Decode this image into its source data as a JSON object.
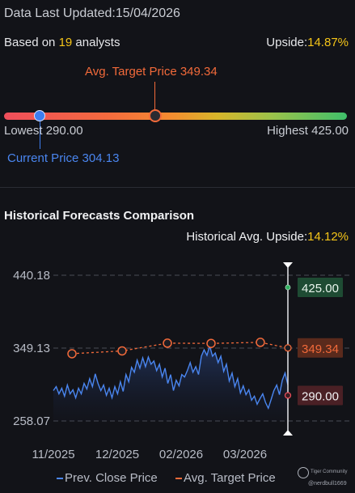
{
  "header": {
    "updated_label": "Data Last Updated:",
    "updated_date": "15/04/2026",
    "analysts_prefix": "Based on ",
    "analysts_count": "19",
    "analysts_suffix": " analysts",
    "upside_label": "Upside:",
    "upside_value": "14.87%"
  },
  "range": {
    "avg_target_label": "Avg. Target Price 349.34",
    "lowest_label": "Lowest 290.00",
    "highest_label": "Highest 425.00",
    "current_label": "Current Price 304.13",
    "low": 290.0,
    "high": 425.0,
    "current": 304.13,
    "avg_target": 349.34,
    "colors": {
      "current": "#3d7ef0",
      "avg": "#f26a3a"
    }
  },
  "history": {
    "title": "Historical Forecasts Comparison",
    "upside_label": "Historical Avg. Upside:",
    "upside_value": "14.12%",
    "legend_prev": "Prev. Close Price",
    "legend_avg": "Avg. Target Price"
  },
  "chart_data": {
    "type": "line",
    "title": "Historical Forecasts Comparison",
    "y_ticks": [
      "440.18",
      "349.13",
      "258.07"
    ],
    "ylim": [
      258.07,
      440.18
    ],
    "x_ticks": [
      "11/2025",
      "12/2025",
      "02/2026",
      "03/2026"
    ],
    "series": [
      {
        "name": "Prev. Close Price",
        "color": "#4a86f0",
        "values": [
          296,
          301,
          292,
          299,
          289,
          303,
          292,
          297,
          287,
          299,
          292,
          305,
          298,
          311,
          301,
          317,
          305,
          296,
          303,
          290,
          299,
          287,
          301,
          292,
          307,
          295,
          316,
          307,
          325,
          319,
          334,
          324,
          337,
          326,
          338,
          329,
          333,
          321,
          329,
          313,
          324,
          305,
          316,
          296,
          309,
          302,
          316,
          313,
          321,
          331,
          319,
          326,
          316,
          339,
          347,
          340,
          352,
          339,
          343,
          331,
          339,
          320,
          329,
          308,
          318,
          301,
          311,
          293,
          302,
          291,
          297,
          284,
          289,
          279,
          286,
          292,
          281,
          274,
          285,
          296,
          303,
          291,
          309,
          318,
          303
        ]
      },
      {
        "name": "Avg. Target Price",
        "color": "#f26a3a",
        "values": [
          342.1,
          345.6,
          355.3,
          355.0,
          356.3,
          349.34
        ]
      }
    ],
    "forecast_labels": {
      "high": "425.00",
      "avg": "349.34",
      "low": "290.00"
    },
    "forecast_values": {
      "high": 425.0,
      "avg": 349.34,
      "low": 290.0
    },
    "colors": {
      "high": "#2fae5e",
      "avg": "#f26a3a",
      "low": "#ef4e5b"
    }
  },
  "watermark": {
    "brand": "Tiger Community",
    "user": "@nerdbull1669"
  }
}
